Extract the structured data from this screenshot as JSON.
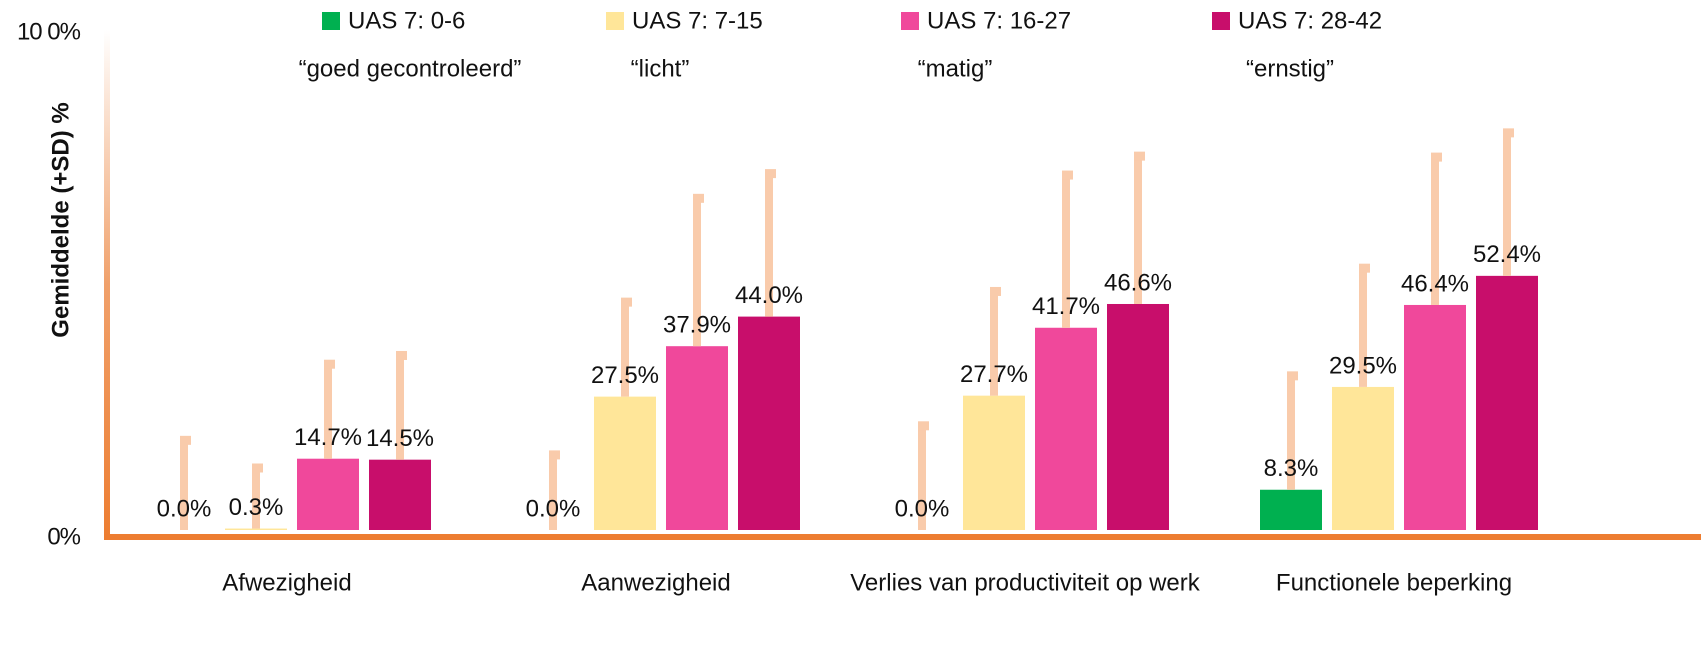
{
  "chart_data": {
    "type": "bar",
    "y_label": "Gemiddelde (+SD) %",
    "categories": [
      "Afwezigheid",
      "Aanwezigheid",
      "Verlies van productiviteit op werk",
      "Functionele beperking"
    ],
    "ylim": [
      0,
      100
    ],
    "yticks": [
      {
        "value": 0,
        "label": "0%"
      },
      {
        "value": 100,
        "label": "10 0%"
      }
    ],
    "grid": false,
    "legend": "top",
    "error_color": "#f9cbab",
    "series": [
      {
        "name": "UAS 7: 0-6",
        "description": "“goed gecontroleerd”",
        "color": "#00b050",
        "values": [
          0.0,
          0.0,
          0.0,
          8.3
        ],
        "value_labels": [
          "0.0%",
          "0.0%",
          "0.0%",
          "8.3%"
        ],
        "errors": [
          19,
          16,
          22,
          24
        ]
      },
      {
        "name": "UAS 7: 7-15",
        "description": "“licht”",
        "color": "#ffe699",
        "values": [
          0.3,
          27.5,
          27.7,
          29.5
        ],
        "value_labels": [
          "0.3%",
          "27.5%",
          "27.7%",
          "29.5%"
        ],
        "errors": [
          13,
          20,
          22,
          25
        ]
      },
      {
        "name": "UAS 7: 16-27",
        "description": "“matig”",
        "color": "#f0489b",
        "values": [
          14.7,
          37.9,
          41.7,
          46.4
        ],
        "value_labels": [
          "14.7%",
          "37.9%",
          "41.7%",
          "46.4%"
        ],
        "errors": [
          20,
          31,
          32,
          31
        ]
      },
      {
        "name": "UAS 7: 28-42",
        "description": "“ernstig”",
        "color": "#c80e6b",
        "values": [
          14.5,
          44.0,
          46.6,
          52.4
        ],
        "value_labels": [
          "14.5%",
          "44.0%",
          "46.6%",
          "52.4%"
        ],
        "errors": [
          22,
          30,
          31,
          30
        ]
      }
    ]
  }
}
